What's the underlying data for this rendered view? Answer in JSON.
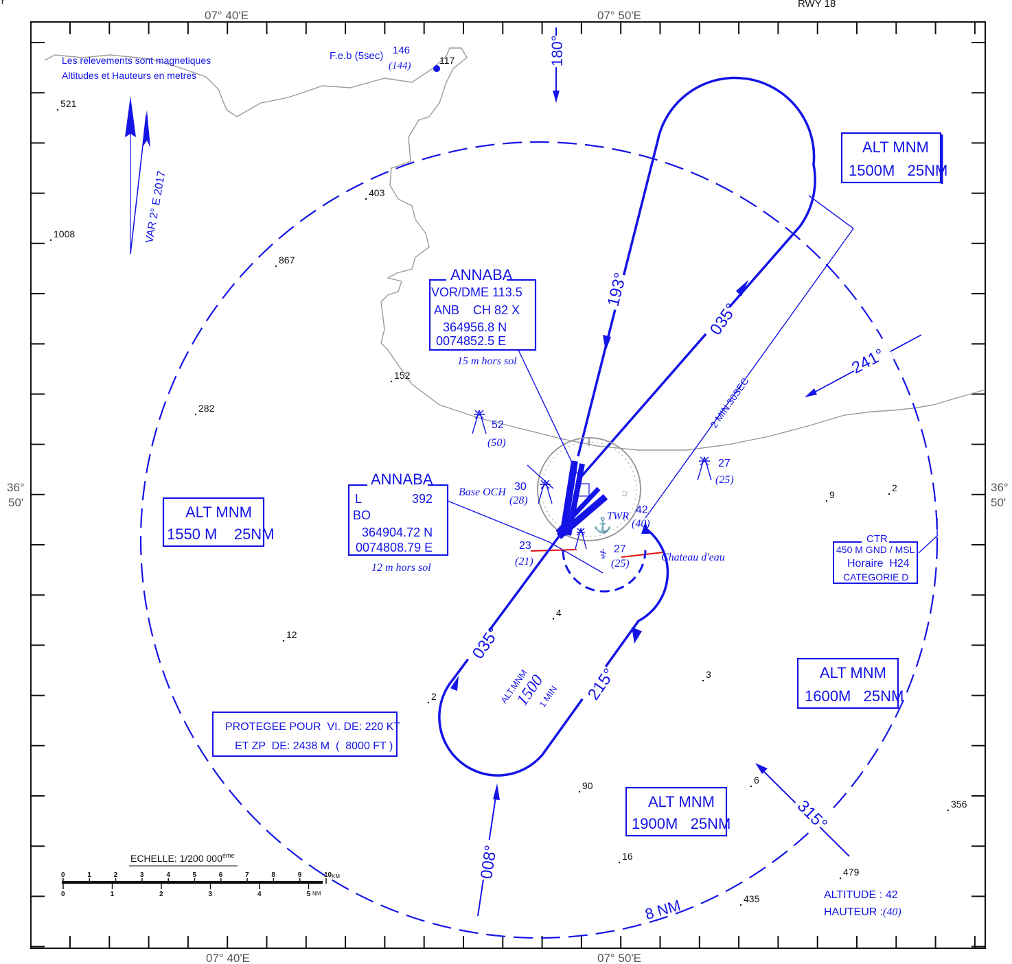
{
  "header": {
    "corner_text": "RWY 18"
  },
  "coords": {
    "lon_left": "07° 40'E",
    "lon_right": "07° 50'E",
    "lat_deg": "36°",
    "lat_min": "50'"
  },
  "notes": {
    "line1": "Les relevements sont magnetiques",
    "line2": "Altitudes et Hauteurs en metres",
    "variation": "VAR 2° E 2017"
  },
  "feb": {
    "label": "F.e.b (5sec)",
    "alt": "146",
    "height": "(144)",
    "spot": "117"
  },
  "vor": {
    "name": "ANNABA",
    "line1": "VOR/DME 113.5",
    "line2": "ANB    CH 82 X",
    "line3": "364956.8 N",
    "line4": "0074852.5 E",
    "sub": "15 m hors sol"
  },
  "ndb": {
    "name": "ANNABA",
    "l": "L",
    "freq": "392",
    "ident": "BO",
    "lat": "364904.72 N",
    "lon": "0074808.79 E",
    "sub": "12 m hors sol"
  },
  "msa": {
    "nw": {
      "line1": "ALT MNM",
      "line2": "1550 M    25NM"
    },
    "ne": {
      "line1": "ALT MNM",
      "line2": "1500M   25NM"
    },
    "e": {
      "line1": "ALT MNM",
      "line2": "1600M   25NM"
    },
    "s": {
      "line1": "ALT MNM",
      "line2": "1900M   25NM"
    }
  },
  "ctr": {
    "title": "CTR",
    "line1": "450 M GND / MSL",
    "line2": "Horaire  H24",
    "line3": "CATEGORIE D"
  },
  "protection": {
    "line1": "PROTEGEE POUR  VI. DE: 220 KT",
    "line2": "ET ZP  DE: 2438 M  (  8000 FT )"
  },
  "holding": {
    "alt_label": "ALT.MNM",
    "alt_value": "1500",
    "time": "1 MIN"
  },
  "bearings": {
    "b180": "180°",
    "b193": "193°",
    "b035_upper": "035°",
    "b241": "241°",
    "b035_lower": "035°",
    "b215": "215°",
    "b008": "008°",
    "b315": "315°"
  },
  "timing": "2 MIN.30SEC",
  "range_label": "8 NM",
  "airport": {
    "base_och": "Base OCH",
    "twr": "TWR",
    "chateau": "Chateau d'eau",
    "obs30_alt": "30",
    "obs30_h": "(28)",
    "obs42_alt": "42",
    "obs42_h": "(40)",
    "obs23_alt": "23",
    "obs23_h": "(21)",
    "obs27b_alt": "27",
    "obs27b_h": "(25)",
    "obs52_alt": "52",
    "obs52_h": "(50)",
    "obs27a_alt": "27",
    "obs27a_h": "(25)"
  },
  "spots": [
    "521",
    "1008",
    "403",
    "867",
    "152",
    "282",
    "12",
    "2",
    "4",
    "90",
    "16",
    "3",
    "6",
    "9",
    "2",
    "356",
    "479",
    "435"
  ],
  "legend_alt": {
    "altitude_label": "ALTITUDE :",
    "altitude_value": "42",
    "hauteur_label": "HAUTEUR :",
    "hauteur_value": "(40)"
  },
  "scale": {
    "title": "ECHELLE:  1/200 000",
    "sup": "éme",
    "km_unit": "KM",
    "nm_unit": "NM",
    "km_ticks": [
      "0",
      "1",
      "2",
      "3",
      "4",
      "5",
      "6",
      "7",
      "8",
      "9",
      "10"
    ],
    "nm_ticks": [
      "0",
      "1",
      "2",
      "3",
      "4",
      "5"
    ]
  },
  "colors": {
    "procedure": "#1414e6",
    "coast": "#9a9a9a",
    "obstacle_line": "#e01010",
    "frame": "#111111"
  }
}
